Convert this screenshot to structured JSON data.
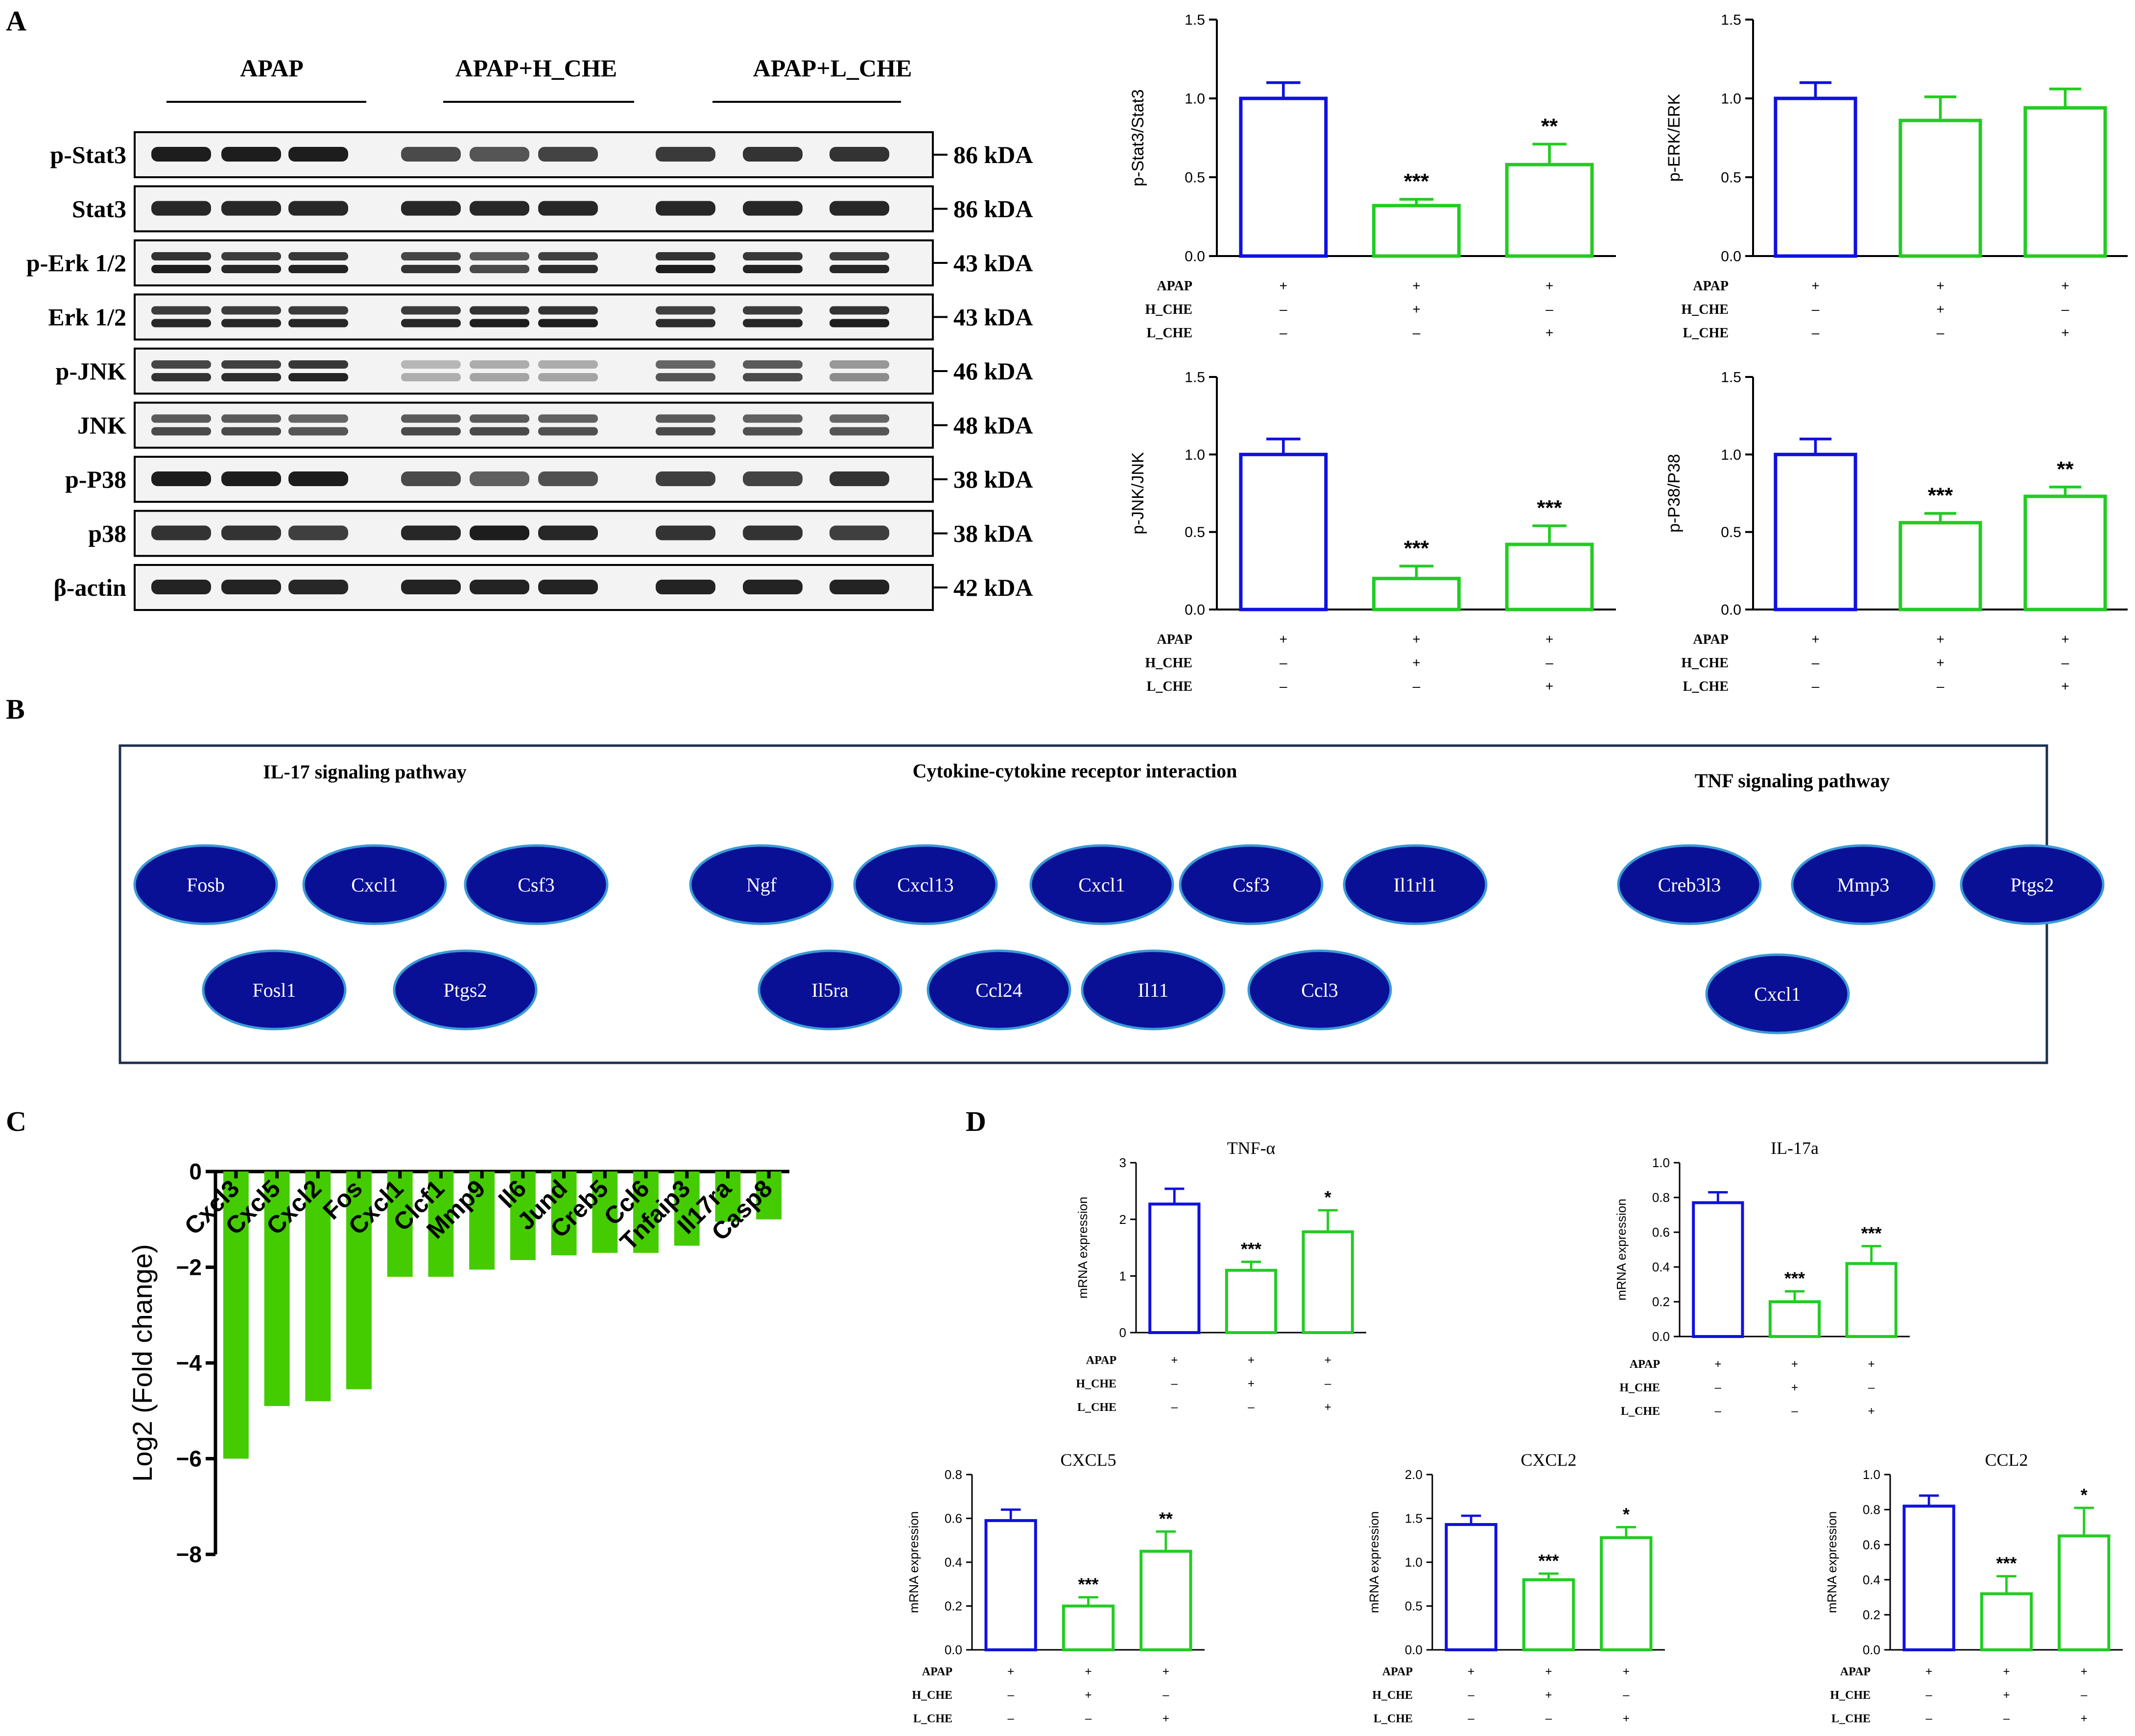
{
  "panel_labels": {
    "a": "A",
    "b": "B",
    "c": "C",
    "d": "D"
  },
  "colors": {
    "apap_blue": "#1010e0",
    "che_green": "#22cc22",
    "fold_green": "#44cc00",
    "node_navy": "#0a1096",
    "node_outline": "#3a9ad8",
    "pathway_border": "#1c3050"
  },
  "western_blot": {
    "groups": [
      "APAP",
      "APAP+H_CHE",
      "APAP+L_CHE"
    ],
    "rows": [
      {
        "protein": "p-Stat3",
        "size": "86 kDA"
      },
      {
        "protein": "Stat3",
        "size": "86 kDA"
      },
      {
        "protein": "p-Erk 1/2",
        "size": "43 kDA"
      },
      {
        "protein": "Erk 1/2",
        "size": "43 kDA"
      },
      {
        "protein": "p-JNK",
        "size": "46 kDA"
      },
      {
        "protein": "JNK",
        "size": "48 kDA"
      },
      {
        "protein": "p-P38",
        "size": "38 kDA"
      },
      {
        "protein": "p38",
        "size": "38 kDA"
      },
      {
        "protein": "β-actin",
        "size": "42 kDA"
      }
    ]
  },
  "treatment_rows": [
    {
      "label": "APAP",
      "signs": [
        "+",
        "+",
        "+"
      ]
    },
    {
      "label": "H_CHE",
      "signs": [
        "–",
        "+",
        "–"
      ]
    },
    {
      "label": "L_CHE",
      "signs": [
        "–",
        "–",
        "+"
      ]
    }
  ],
  "pathways": {
    "groups": [
      {
        "title": "IL-17 signaling pathway",
        "nodes": [
          "Fosb",
          "Cxcl1",
          "Csf3",
          "Fosl1",
          "Ptgs2"
        ]
      },
      {
        "title": "Cytokine-cytokine receptor interaction",
        "nodes": [
          "Ngf",
          "Cxcl13",
          "Cxcl1",
          "Csf3",
          "Il1rl1",
          "Il5ra",
          "Ccl24",
          "Il11",
          "Ccl3"
        ]
      },
      {
        "title": "TNF signaling pathway",
        "nodes": [
          "Creb3l3",
          "Mmp3",
          "Ptgs2",
          "Cxcl1"
        ]
      }
    ]
  },
  "chart_data": [
    {
      "id": "p_stat3",
      "type": "bar",
      "panel": "A",
      "ylabel": "p-Stat3/Stat3",
      "ylim": [
        0,
        1.5
      ],
      "yticks": [
        "0.0",
        "0.5",
        "1.0",
        "1.5"
      ],
      "categories": [
        "APAP",
        "APAP+H_CHE",
        "APAP+L_CHE"
      ],
      "values": [
        1.0,
        0.32,
        0.58
      ],
      "errors": [
        0.1,
        0.04,
        0.13
      ],
      "significance": [
        "",
        "***",
        "**"
      ]
    },
    {
      "id": "p_erk",
      "type": "bar",
      "panel": "A",
      "ylabel": "p-ERK/ERK",
      "ylim": [
        0,
        1.5
      ],
      "yticks": [
        "0.0",
        "0.5",
        "1.0",
        "1.5"
      ],
      "categories": [
        "APAP",
        "APAP+H_CHE",
        "APAP+L_CHE"
      ],
      "values": [
        1.0,
        0.86,
        0.94
      ],
      "errors": [
        0.1,
        0.15,
        0.12
      ],
      "significance": [
        "",
        "",
        ""
      ]
    },
    {
      "id": "p_jnk",
      "type": "bar",
      "panel": "A",
      "ylabel": "p-JNK/JNK",
      "ylim": [
        0,
        1.5
      ],
      "yticks": [
        "0.0",
        "0.5",
        "1.0",
        "1.5"
      ],
      "categories": [
        "APAP",
        "APAP+H_CHE",
        "APAP+L_CHE"
      ],
      "values": [
        1.0,
        0.2,
        0.42
      ],
      "errors": [
        0.1,
        0.08,
        0.12
      ],
      "significance": [
        "",
        "***",
        "***"
      ]
    },
    {
      "id": "p_p38",
      "type": "bar",
      "panel": "A",
      "ylabel": "p-P38/P38",
      "ylim": [
        0,
        1.5
      ],
      "yticks": [
        "0.0",
        "0.5",
        "1.0",
        "1.5"
      ],
      "categories": [
        "APAP",
        "APAP+H_CHE",
        "APAP+L_CHE"
      ],
      "values": [
        1.0,
        0.56,
        0.73
      ],
      "errors": [
        0.1,
        0.06,
        0.06
      ],
      "significance": [
        "",
        "***",
        "**"
      ]
    },
    {
      "id": "fold_change",
      "type": "bar",
      "panel": "C",
      "ylabel": "Log2 (Fold change)",
      "ylim": [
        -8,
        0
      ],
      "yticks": [
        "0",
        "−2",
        "−4",
        "−6",
        "−8"
      ],
      "categories": [
        "Cxcl3",
        "Cxcl5",
        "Cxcl2",
        "Fos",
        "Cxcl1",
        "Clcf1",
        "Mmp9",
        "Il6",
        "Jund",
        "Creb5",
        "Ccl6",
        "Tnfaip3",
        "Il17ra",
        "Casp8"
      ],
      "values": [
        -6.0,
        -4.9,
        -4.8,
        -4.55,
        -2.2,
        -2.2,
        -2.05,
        -1.85,
        -1.75,
        -1.7,
        -1.7,
        -1.55,
        -1.05,
        -1.0
      ]
    },
    {
      "id": "tnf",
      "type": "bar",
      "panel": "D",
      "title": "TNF-α",
      "ylabel": "mRNA expression",
      "ylim": [
        0,
        3
      ],
      "yticks": [
        "0",
        "1",
        "2",
        "3"
      ],
      "categories": [
        "APAP",
        "APAP+H_CHE",
        "APAP+L_CHE"
      ],
      "values": [
        2.27,
        1.1,
        1.78
      ],
      "errors": [
        0.27,
        0.15,
        0.38
      ],
      "significance": [
        "",
        "***",
        "*"
      ]
    },
    {
      "id": "il17a",
      "type": "bar",
      "panel": "D",
      "title": "IL-17a",
      "ylabel": "mRNA expression",
      "ylim": [
        0,
        1.0
      ],
      "yticks": [
        "0.0",
        "0.2",
        "0.4",
        "0.6",
        "0.8",
        "1.0"
      ],
      "categories": [
        "APAP",
        "APAP+H_CHE",
        "APAP+L_CHE"
      ],
      "values": [
        0.77,
        0.2,
        0.42
      ],
      "errors": [
        0.06,
        0.06,
        0.1
      ],
      "significance": [
        "",
        "***",
        "***"
      ]
    },
    {
      "id": "cxcl5",
      "type": "bar",
      "panel": "D",
      "title": "CXCL5",
      "ylabel": "mRNA expression",
      "ylim": [
        0,
        0.8
      ],
      "yticks": [
        "0.0",
        "0.2",
        "0.4",
        "0.6",
        "0.8"
      ],
      "categories": [
        "APAP",
        "APAP+H_CHE",
        "APAP+L_CHE"
      ],
      "values": [
        0.59,
        0.2,
        0.45
      ],
      "errors": [
        0.05,
        0.04,
        0.09
      ],
      "significance": [
        "",
        "***",
        "**"
      ]
    },
    {
      "id": "cxcl2",
      "type": "bar",
      "panel": "D",
      "title": "CXCL2",
      "ylabel": "mRNA expression",
      "ylim": [
        0,
        2.0
      ],
      "yticks": [
        "0.0",
        "0.5",
        "1.0",
        "1.5",
        "2.0"
      ],
      "categories": [
        "APAP",
        "APAP+H_CHE",
        "APAP+L_CHE"
      ],
      "values": [
        1.43,
        0.8,
        1.28
      ],
      "errors": [
        0.1,
        0.07,
        0.12
      ],
      "significance": [
        "",
        "***",
        "*"
      ]
    },
    {
      "id": "ccl2",
      "type": "bar",
      "panel": "D",
      "title": "CCL2",
      "ylabel": "mRNA expression",
      "ylim": [
        0,
        1.0
      ],
      "yticks": [
        "0.0",
        "0.2",
        "0.4",
        "0.6",
        "0.8",
        "1.0"
      ],
      "categories": [
        "APAP",
        "APAP+H_CHE",
        "APAP+L_CHE"
      ],
      "values": [
        0.82,
        0.32,
        0.65
      ],
      "errors": [
        0.06,
        0.1,
        0.16
      ],
      "significance": [
        "",
        "***",
        "*"
      ]
    }
  ]
}
